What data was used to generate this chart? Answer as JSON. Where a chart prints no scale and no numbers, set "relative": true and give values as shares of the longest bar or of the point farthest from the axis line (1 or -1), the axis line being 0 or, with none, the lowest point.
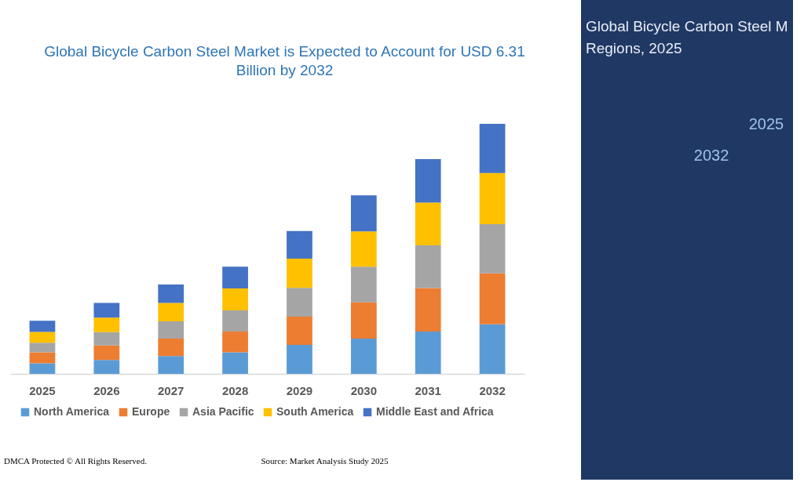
{
  "chart_data": [
    {
      "type": "bar",
      "title": "Global Bicycle Carbon Steel Market is Expected to Account for USD 6.31 Billion by 2032",
      "categories": [
        "2025",
        "2026",
        "2027",
        "2028",
        "2029",
        "2030",
        "2031",
        "2032"
      ],
      "stacked": true,
      "relative": true,
      "legend": "bottom",
      "series": [
        {
          "name": "North America",
          "color": "#5b9bd5",
          "values": [
            0.042,
            0.056,
            0.071,
            0.086,
            0.116,
            0.141,
            0.169,
            0.198
          ]
        },
        {
          "name": "Europe",
          "color": "#ed7d31",
          "values": [
            0.044,
            0.058,
            0.07,
            0.083,
            0.113,
            0.145,
            0.174,
            0.204
          ]
        },
        {
          "name": "Asia Pacific",
          "color": "#a5a5a5",
          "values": [
            0.039,
            0.053,
            0.069,
            0.085,
            0.115,
            0.143,
            0.171,
            0.197
          ]
        },
        {
          "name": "South America",
          "color": "#ffc000",
          "values": [
            0.043,
            0.058,
            0.074,
            0.088,
            0.117,
            0.141,
            0.171,
            0.204
          ]
        },
        {
          "name": "Middle East and Africa",
          "color": "#4472c4",
          "values": [
            0.044,
            0.059,
            0.073,
            0.087,
            0.11,
            0.144,
            0.174,
            0.197
          ]
        }
      ],
      "annotations": [
        "DMCA Protected © All Rights Reserved.",
        "Source: Market Analysis Study 2025"
      ]
    },
    {
      "type": "other",
      "title": "Global Bicycle Carbon Steel M Regions, 2025",
      "annotations": [
        "2025",
        "2032"
      ]
    }
  ]
}
